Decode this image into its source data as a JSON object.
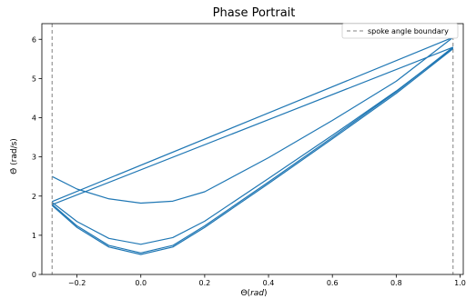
{
  "chart_data": {
    "type": "line",
    "title": "Phase Portrait",
    "xlabel": "Θ(rad)",
    "xlabel_main": "Θ(",
    "xlabel_italic": "rad",
    "xlabel_close": ")",
    "ylabel": "Θ̇ (rad/s)",
    "xlim": [
      -0.31,
      1.01
    ],
    "ylim": [
      0,
      6.4
    ],
    "xticks": [
      -0.2,
      0.0,
      0.2,
      0.4,
      0.6,
      0.8,
      1.0
    ],
    "xtick_labels": [
      "−0.2",
      "0.0",
      "0.2",
      "0.4",
      "0.6",
      "0.8",
      "1.0"
    ],
    "yticks": [
      0,
      1,
      2,
      3,
      4,
      5,
      6
    ],
    "ytick_labels": [
      "0",
      "1",
      "2",
      "3",
      "4",
      "5",
      "6"
    ],
    "grid": false,
    "legend_position": "top-right",
    "boundaries": [
      -0.278,
      0.978
    ],
    "boundary_style": {
      "color": "#808080",
      "dash": "dashed"
    },
    "legend": [
      {
        "label": "spoke angle boundary",
        "style": "dashed",
        "color": "#808080"
      }
    ],
    "series": [
      {
        "color": "#1f77b4",
        "x": [
          -0.278,
          -0.2,
          -0.1,
          0.0,
          0.1,
          0.2,
          0.4,
          0.6,
          0.8,
          0.978
        ],
        "y": [
          2.5,
          2.18,
          1.93,
          1.82,
          1.87,
          2.11,
          2.98,
          3.93,
          4.93,
          6.05
        ]
      },
      {
        "color": "#1f77b4",
        "x": [
          -0.278,
          0.978
        ],
        "y": [
          1.78,
          5.8
        ]
      },
      {
        "color": "#1f77b4",
        "x": [
          -0.278,
          0.978
        ],
        "y": [
          1.86,
          6.05
        ]
      },
      {
        "color": "#1f77b4",
        "x": [
          -0.278,
          -0.2,
          -0.1,
          0.0,
          0.1,
          0.2,
          0.4,
          0.6,
          0.8,
          0.978
        ],
        "y": [
          1.84,
          1.35,
          0.92,
          0.77,
          0.94,
          1.36,
          2.45,
          3.55,
          4.68,
          5.78
        ]
      },
      {
        "color": "#1f77b4",
        "x": [
          -0.278,
          -0.2,
          -0.1,
          0.0,
          0.1,
          0.2,
          0.4,
          0.6,
          0.8,
          0.978
        ],
        "y": [
          1.79,
          1.24,
          0.74,
          0.55,
          0.74,
          1.24,
          2.36,
          3.5,
          4.66,
          5.8
        ]
      },
      {
        "color": "#1f77b4",
        "x": [
          -0.278,
          -0.2,
          -0.1,
          0.0,
          0.1,
          0.2,
          0.4,
          0.6,
          0.8,
          0.978
        ],
        "y": [
          1.76,
          1.2,
          0.7,
          0.51,
          0.7,
          1.2,
          2.32,
          3.46,
          4.62,
          5.76
        ]
      }
    ]
  }
}
